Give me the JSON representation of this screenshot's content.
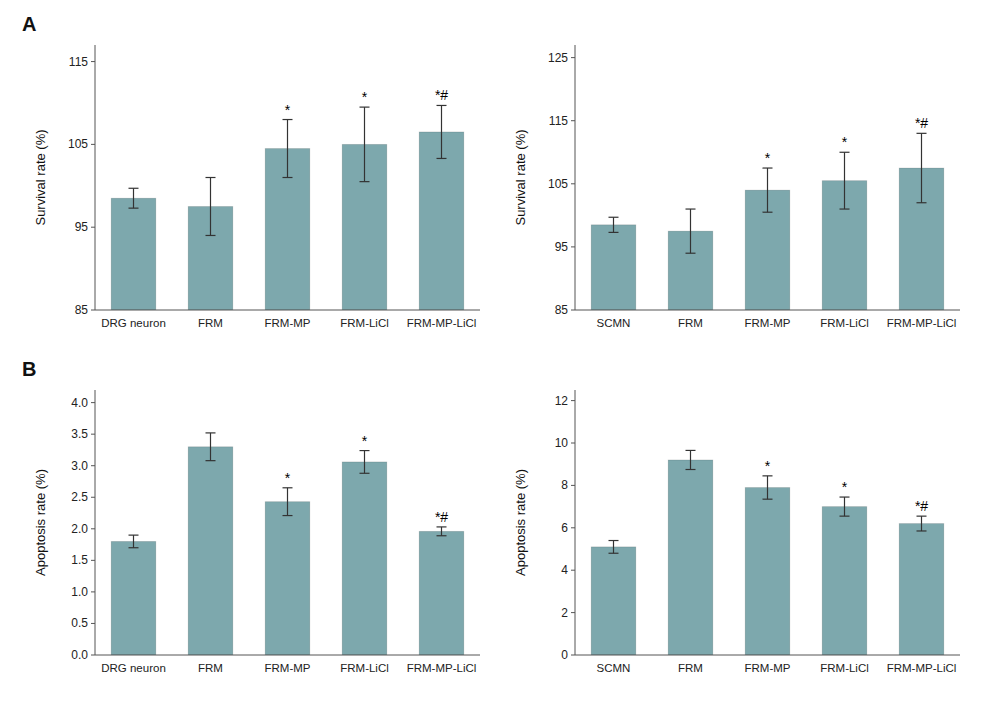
{
  "chart_data": [
    {
      "type": "bar",
      "title": "A",
      "categories": [
        "DRG neuron",
        "FRM",
        "FRM-MP",
        "FRM-LiCl",
        "FRM-MP-LiCl"
      ],
      "values": [
        98.5,
        97.5,
        104.5,
        105.0,
        106.5
      ],
      "errors": [
        1.2,
        3.5,
        3.5,
        4.5,
        3.2
      ],
      "annotations": [
        null,
        null,
        "*",
        "*",
        "*#"
      ],
      "y_label": "Survival rate (%)",
      "ylim": [
        85,
        117
      ],
      "yticks": [
        85,
        95,
        105,
        115
      ],
      "color": "#7da8ad",
      "grid": false
    },
    {
      "type": "bar",
      "categories": [
        "SCMN",
        "FRM",
        "FRM-MP",
        "FRM-LiCl",
        "FRM-MP-LiCl"
      ],
      "values": [
        98.5,
        97.5,
        104.0,
        105.5,
        107.5
      ],
      "errors": [
        1.2,
        3.5,
        3.5,
        4.5,
        5.5
      ],
      "annotations": [
        null,
        null,
        "*",
        "*",
        "*#"
      ],
      "y_label": "Survival rate (%)",
      "ylim": [
        85,
        127
      ],
      "yticks": [
        85,
        95,
        105,
        115,
        125
      ],
      "color": "#7da8ad",
      "grid": false
    },
    {
      "type": "bar",
      "title": "B",
      "categories": [
        "DRG neuron",
        "FRM",
        "FRM-MP",
        "FRM-LiCl",
        "FRM-MP-LiCl"
      ],
      "values": [
        1.8,
        3.3,
        2.43,
        3.06,
        1.96
      ],
      "errors": [
        0.1,
        0.22,
        0.22,
        0.18,
        0.07
      ],
      "annotations": [
        null,
        null,
        "*",
        "*",
        "*#"
      ],
      "y_label": "Apoptosis rate (%)",
      "ylim": [
        0,
        4.2
      ],
      "yticks": [
        {
          "value": 0,
          "label": "0.0"
        },
        0.5,
        {
          "value": 1,
          "label": "1.0"
        },
        1.5,
        {
          "value": 2,
          "label": "2.0"
        },
        2.5,
        {
          "value": 3,
          "label": "3.0"
        },
        3.5,
        {
          "value": 4,
          "label": "4.0"
        }
      ],
      "color": "#7da8ad",
      "grid": false
    },
    {
      "type": "bar",
      "categories": [
        "SCMN",
        "FRM",
        "FRM-MP",
        "FRM-LiCl",
        "FRM-MP-LiCl"
      ],
      "values": [
        5.1,
        9.2,
        7.9,
        7.0,
        6.2
      ],
      "errors": [
        0.3,
        0.45,
        0.55,
        0.45,
        0.35
      ],
      "annotations": [
        null,
        null,
        "*",
        "*",
        "*#"
      ],
      "y_label": "Apoptosis rate (%)",
      "ylim": [
        0,
        12.5
      ],
      "yticks": [
        0,
        2,
        4,
        6,
        8,
        10,
        12
      ],
      "color": "#7da8ad",
      "grid": false
    }
  ]
}
